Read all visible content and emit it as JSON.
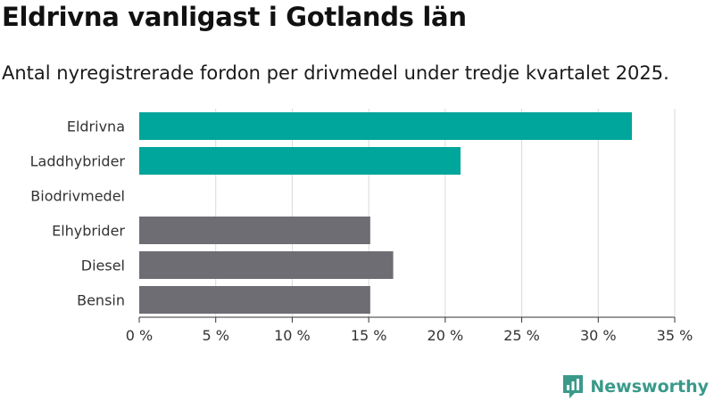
{
  "chart_data": {
    "type": "bar",
    "orientation": "horizontal",
    "title": "Eldrivna vanligast i Gotlands län",
    "subtitle": "Antal nyregistrerade fordon per drivmedel under tredje kvartalet 2025.",
    "categories": [
      "Eldrivna",
      "Laddhybrider",
      "Biodrivmedel",
      "Elhybrider",
      "Diesel",
      "Bensin"
    ],
    "values": [
      32.2,
      21.0,
      0,
      15.1,
      16.6,
      15.1
    ],
    "colors": [
      "#00a59b",
      "#00a59b",
      "#00a59b",
      "#6d6d73",
      "#6d6d73",
      "#6d6d73"
    ],
    "xlim": [
      0,
      35
    ],
    "xticks": [
      0,
      5,
      10,
      15,
      20,
      25,
      30,
      35
    ],
    "xtick_labels": [
      "0 %",
      "5 %",
      "10 %",
      "15 %",
      "20 %",
      "25 %",
      "30 %",
      "35 %"
    ],
    "grid": true
  },
  "brand": {
    "name": "Newsworthy",
    "color": "#3a9a8a"
  }
}
